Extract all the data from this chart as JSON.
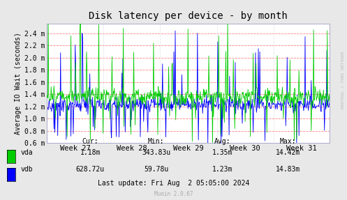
{
  "title": "Disk latency per device - by month",
  "ylabel": "Average IO Wait (seconds)",
  "watermark": "RRDTOOL / TOBI OETIKER",
  "munin_version": "Munin 2.0.67",
  "last_update": "Last update: Fri Aug  2 05:05:00 2024",
  "bg_color": "#e8e8e8",
  "plot_bg_color": "#ffffff",
  "grid_h_color": "#ff8080",
  "grid_v_color": "#cccccc",
  "border_color": "#aaaacc",
  "vda_color": "#00cc00",
  "vdb_color": "#0000ff",
  "ylim": [
    0.0006,
    0.00255
  ],
  "yticks": [
    0.0006,
    0.0008,
    0.001,
    0.0012,
    0.0014,
    0.0016,
    0.0018,
    0.002,
    0.0022,
    0.0024
  ],
  "ytick_labels": [
    "0.6 m",
    "0.8 m",
    "1.0 m",
    "1.2 m",
    "1.4 m",
    "1.6 m",
    "1.8 m",
    "2.0 m",
    "2.2 m",
    "2.4 m"
  ],
  "week_labels": [
    "Week 27",
    "Week 28",
    "Week 29",
    "Week 30",
    "Week 31"
  ],
  "week_tick_pos": [
    60,
    180,
    300,
    420,
    540
  ],
  "week_vline_pos": [
    0,
    120,
    240,
    360,
    480,
    599
  ],
  "stats": {
    "header": [
      "Cur:",
      "Min:",
      "Avg:",
      "Max:"
    ],
    "vda": [
      "1.18m",
      "343.83u",
      "1.35m",
      "14.42m"
    ],
    "vdb": [
      "628.72u",
      "59.78u",
      "1.23m",
      "14.83m"
    ]
  },
  "n_points": 600,
  "seed": 42,
  "figsize": [
    4.97,
    2.87
  ],
  "dpi": 100
}
